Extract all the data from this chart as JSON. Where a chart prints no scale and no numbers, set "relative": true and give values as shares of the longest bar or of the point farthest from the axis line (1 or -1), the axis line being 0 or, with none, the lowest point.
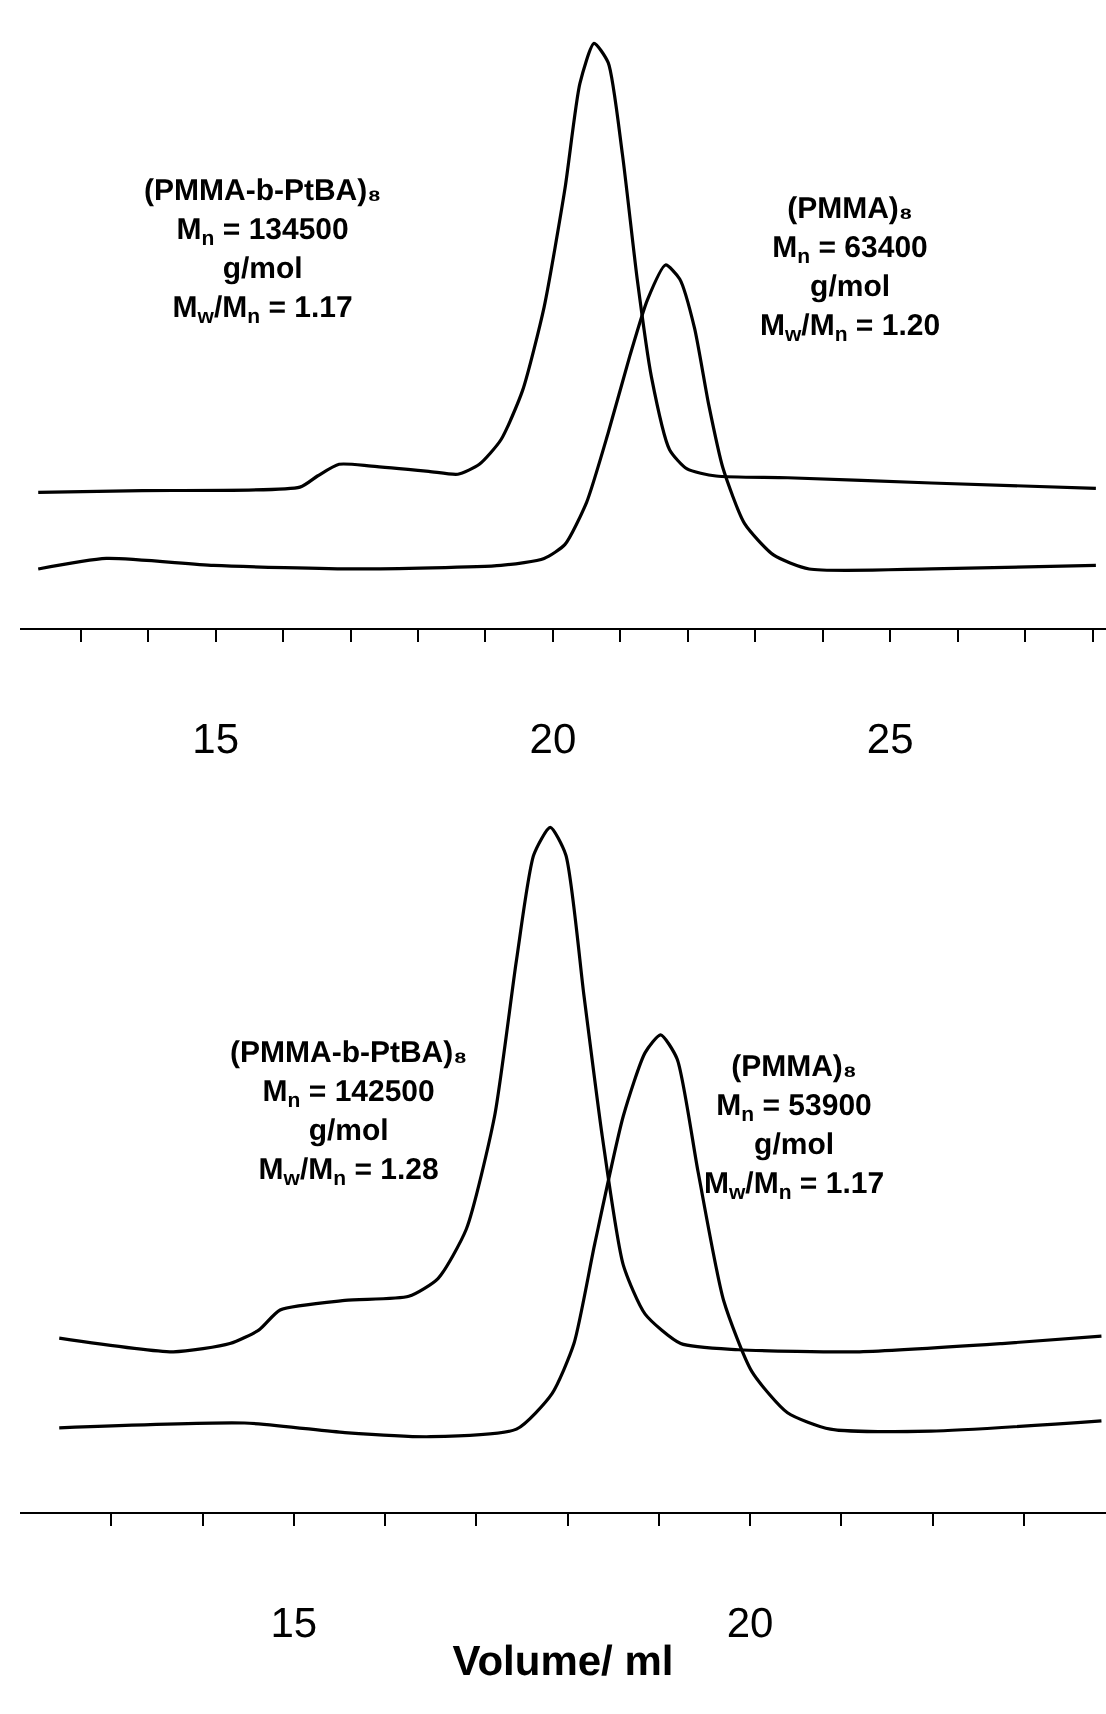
{
  "chart_data": [
    {
      "type": "line",
      "relative": true,
      "xlim": [
        12.1,
        28.2
      ],
      "xticks": [
        {
          "value": 13,
          "label": null
        },
        {
          "value": 14,
          "label": null
        },
        15,
        {
          "value": 16,
          "label": null
        },
        {
          "value": 17,
          "label": null
        },
        {
          "value": 18,
          "label": null
        },
        {
          "value": 19,
          "label": null
        },
        20,
        {
          "value": 21,
          "label": null
        },
        {
          "value": 22,
          "label": null
        },
        {
          "value": 23,
          "label": null
        },
        {
          "value": 24,
          "label": null
        },
        25,
        {
          "value": 26,
          "label": null
        },
        {
          "value": 27,
          "label": null
        },
        {
          "value": 28,
          "label": null
        }
      ],
      "series": [
        {
          "color": "#000000",
          "x": [
            12.37,
            13.91,
            16.25,
            16.51,
            16.83,
            17.31,
            18.16,
            18.59,
            18.91,
            19.23,
            19.55,
            19.87,
            20.18,
            20.4,
            20.61,
            20.82,
            21.03,
            21.25,
            21.46,
            21.73,
            21.99,
            22.42,
            23.48,
            25.61,
            28.05
          ],
          "values": [
            0.232,
            0.235,
            0.241,
            0.26,
            0.28,
            0.277,
            0.268,
            0.263,
            0.28,
            0.322,
            0.406,
            0.549,
            0.752,
            0.931,
            1.0,
            0.967,
            0.811,
            0.597,
            0.43,
            0.305,
            0.272,
            0.26,
            0.257,
            0.248,
            0.239
          ]
        },
        {
          "color": "#000000",
          "x": [
            12.37,
            13.38,
            14.97,
            17.1,
            19.23,
            19.87,
            20.18,
            20.5,
            20.82,
            21.14,
            21.4,
            21.67,
            21.88,
            22.1,
            22.31,
            22.52,
            22.84,
            23.27,
            23.8,
            25.61,
            28.05
          ],
          "values": [
            0.101,
            0.119,
            0.107,
            0.101,
            0.107,
            0.119,
            0.143,
            0.215,
            0.334,
            0.465,
            0.561,
            0.621,
            0.597,
            0.513,
            0.382,
            0.274,
            0.179,
            0.125,
            0.101,
            0.101,
            0.107
          ]
        }
      ],
      "annotations": [
        "(PMMA-b-PtBA)₈\nM$_{n}$ = 134500\ng/mol\nM$_{w}$/M$_{n}$ = 1.17",
        "(PMMA)₈\nM$_{n}$ = 63400\ng/mol\nM$_{w}$/M$_{n}$ = 1.20"
      ]
    },
    {
      "type": "line",
      "relative": true,
      "xlim": [
        12.0,
        23.9
      ],
      "xlabel": "Volume/ ml",
      "xticks": [
        {
          "value": 13,
          "label": null
        },
        {
          "value": 14,
          "label": null
        },
        15,
        {
          "value": 16,
          "label": null
        },
        {
          "value": 17,
          "label": null
        },
        {
          "value": 18,
          "label": null
        },
        {
          "value": 19,
          "label": null
        },
        20,
        {
          "value": 21,
          "label": null
        },
        {
          "value": 22,
          "label": null
        },
        {
          "value": 23,
          "label": null
        }
      ],
      "series": [
        {
          "color": "#000000",
          "x": [
            12.43,
            13.68,
            14.3,
            14.62,
            14.85,
            15.56,
            16.26,
            16.58,
            16.89,
            17.2,
            17.44,
            17.63,
            17.81,
            17.98,
            18.18,
            18.38,
            18.61,
            18.85,
            19.24,
            19.87,
            21.2,
            22.76,
            23.85
          ],
          "values": [
            0.254,
            0.234,
            0.246,
            0.266,
            0.295,
            0.309,
            0.315,
            0.341,
            0.413,
            0.578,
            0.806,
            0.96,
            1.0,
            0.96,
            0.754,
            0.549,
            0.361,
            0.289,
            0.246,
            0.237,
            0.234,
            0.246,
            0.257
          ]
        },
        {
          "color": "#000000",
          "x": [
            12.43,
            14.46,
            15.56,
            16.5,
            17.44,
            17.83,
            18.07,
            18.3,
            18.61,
            18.85,
            19.02,
            19.2,
            19.43,
            19.71,
            20.02,
            20.41,
            20.88,
            21.98,
            23.85
          ],
          "values": [
            0.123,
            0.13,
            0.116,
            0.11,
            0.121,
            0.173,
            0.246,
            0.393,
            0.578,
            0.671,
            0.697,
            0.662,
            0.497,
            0.309,
            0.205,
            0.145,
            0.121,
            0.118,
            0.133
          ]
        }
      ],
      "annotations": [
        "(PMMA-b-PtBA)₈\nM$_{n}$ = 142500\ng/mol\nM$_{w}$/M$_{n}$ = 1.28",
        "(PMMA)₈\nM$_{n}$ = 53900\ng/mol\nM$_{w}$/M$_{n}$ = 1.17"
      ]
    }
  ]
}
